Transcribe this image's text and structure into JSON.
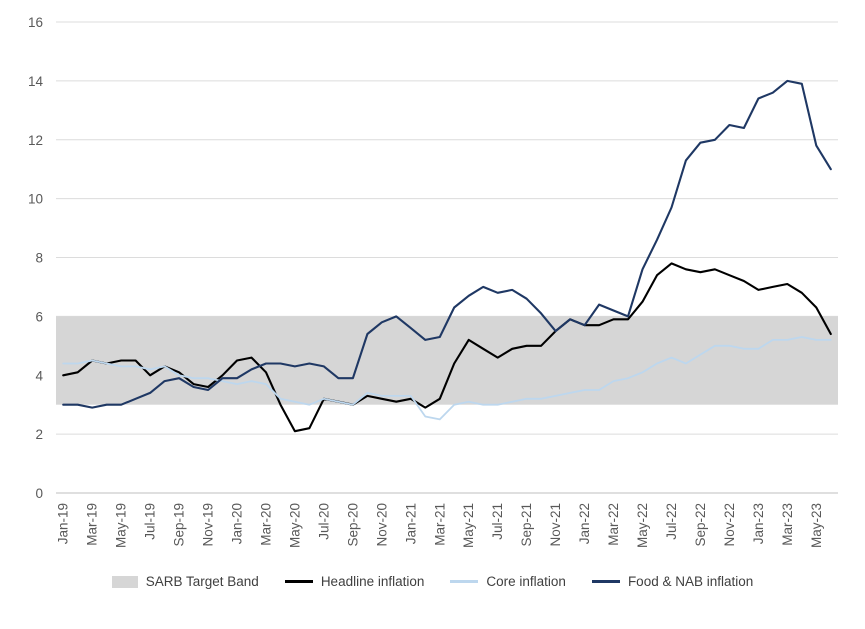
{
  "chart_data": {
    "type": "line",
    "title": "",
    "grid": true,
    "legend_position": "bottom",
    "ylim": [
      0,
      16
    ],
    "y_ticks": [
      0,
      2,
      4,
      6,
      8,
      10,
      12,
      14,
      16
    ],
    "x_label_every": 2,
    "x_tick_labels": [
      "Jan-19",
      "Mar-19",
      "May-19",
      "Jul-19",
      "Sep-19",
      "Nov-19",
      "Jan-20",
      "Mar-20",
      "May-20",
      "Jul-20",
      "Sep-20",
      "Nov-20",
      "Jan-21",
      "Mar-21",
      "May-21",
      "Jul-21",
      "Sep-21",
      "Nov-21",
      "Jan-22",
      "Mar-22",
      "May-22",
      "Jul-22",
      "Sep-22",
      "Nov-22",
      "Jan-23",
      "Mar-23",
      "May-23"
    ],
    "months": [
      "Jan-19",
      "Feb-19",
      "Mar-19",
      "Apr-19",
      "May-19",
      "Jun-19",
      "Jul-19",
      "Aug-19",
      "Sep-19",
      "Oct-19",
      "Nov-19",
      "Dec-19",
      "Jan-20",
      "Feb-20",
      "Mar-20",
      "Apr-20",
      "May-20",
      "Jun-20",
      "Jul-20",
      "Aug-20",
      "Sep-20",
      "Oct-20",
      "Nov-20",
      "Dec-20",
      "Jan-21",
      "Feb-21",
      "Mar-21",
      "Apr-21",
      "May-21",
      "Jun-21",
      "Jul-21",
      "Aug-21",
      "Sep-21",
      "Oct-21",
      "Nov-21",
      "Dec-21",
      "Jan-22",
      "Feb-22",
      "Mar-22",
      "Apr-22",
      "May-22",
      "Jun-22",
      "Jul-22",
      "Aug-22",
      "Sep-22",
      "Oct-22",
      "Nov-22",
      "Dec-22",
      "Jan-23",
      "Feb-23",
      "Mar-23",
      "Apr-23",
      "May-23",
      "Jun-23"
    ],
    "band": {
      "label": "SARB Target Band",
      "from": 3,
      "to": 6,
      "color": "#d6d6d6"
    },
    "series": [
      {
        "name": "Headline inflation",
        "color": "#000000",
        "values": [
          4.0,
          4.1,
          4.5,
          4.4,
          4.5,
          4.5,
          4.0,
          4.3,
          4.1,
          3.7,
          3.6,
          4.0,
          4.5,
          4.6,
          4.1,
          3.0,
          2.1,
          2.2,
          3.2,
          3.1,
          3.0,
          3.3,
          3.2,
          3.1,
          3.2,
          2.9,
          3.2,
          4.4,
          5.2,
          4.9,
          4.6,
          4.9,
          5.0,
          5.0,
          5.5,
          5.9,
          5.7,
          5.7,
          5.9,
          5.9,
          6.5,
          7.4,
          7.8,
          7.6,
          7.5,
          7.6,
          7.4,
          7.2,
          6.9,
          7.0,
          7.1,
          6.8,
          6.3,
          5.4
        ]
      },
      {
        "name": "Core inflation",
        "color": "#bdd7ee",
        "values": [
          4.4,
          4.4,
          4.5,
          4.4,
          4.3,
          4.3,
          4.2,
          4.3,
          4.0,
          3.9,
          3.9,
          3.8,
          3.7,
          3.8,
          3.7,
          3.2,
          3.1,
          3.0,
          3.2,
          3.1,
          3.0,
          3.4,
          3.3,
          3.3,
          3.3,
          2.6,
          2.5,
          3.0,
          3.1,
          3.0,
          3.0,
          3.1,
          3.2,
          3.2,
          3.3,
          3.4,
          3.5,
          3.5,
          3.8,
          3.9,
          4.1,
          4.4,
          4.6,
          4.4,
          4.7,
          5.0,
          5.0,
          4.9,
          4.9,
          5.2,
          5.2,
          5.3,
          5.2,
          5.2
        ]
      },
      {
        "name": "Food & NAB inflation",
        "color": "#1f3864",
        "values": [
          3.0,
          3.0,
          2.9,
          3.0,
          3.0,
          3.2,
          3.4,
          3.8,
          3.9,
          3.6,
          3.5,
          3.9,
          3.9,
          4.2,
          4.4,
          4.4,
          4.3,
          4.4,
          4.3,
          3.9,
          3.9,
          5.4,
          5.8,
          6.0,
          5.6,
          5.2,
          5.3,
          6.3,
          6.7,
          7.0,
          6.8,
          6.9,
          6.6,
          6.1,
          5.5,
          5.9,
          5.7,
          6.4,
          6.2,
          6.0,
          7.6,
          8.6,
          9.7,
          11.3,
          11.9,
          12.0,
          12.5,
          12.4,
          13.4,
          13.6,
          14.0,
          13.9,
          11.8,
          11.0
        ]
      }
    ],
    "axis": {
      "tick_color": "#595959",
      "grid_color": "#dcdcdc",
      "axis_line_color": "#bfbfbf"
    }
  }
}
